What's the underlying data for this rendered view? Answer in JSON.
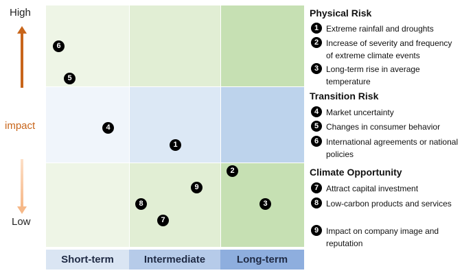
{
  "y_axis": {
    "high": "High",
    "middle": "impact",
    "low": "Low"
  },
  "x_axis": [
    "Short-term",
    "Intermediate",
    "Long-term"
  ],
  "colors": {
    "arrow_up": "#c8651a",
    "arrow_down": "#f6b888",
    "impact_label": "#c8651a",
    "green_light": "#eef5e6",
    "green_mid": "#e1eed4",
    "green_dark": "#c6e0b3",
    "blue_light": "#f0f5fb",
    "blue_mid": "#dce8f5",
    "blue_dark": "#bdd3ec"
  },
  "markers": [
    "1",
    "2",
    "3",
    "4",
    "5",
    "6",
    "7",
    "8",
    "9"
  ],
  "legend": {
    "physical": {
      "title": "Physical Risk",
      "items": [
        {
          "num": "1",
          "text": "Extreme rainfall and droughts"
        },
        {
          "num": "2",
          "text": "Increase of severity and frequency of extreme climate events"
        },
        {
          "num": "3",
          "text": "Long-term rise in average temperature"
        }
      ]
    },
    "transition": {
      "title": "Transition Risk",
      "items": [
        {
          "num": "4",
          "text": "Market uncertainty"
        },
        {
          "num": "5",
          "text": "Changes in consumer behavior"
        },
        {
          "num": "6",
          "text": "International agreements or national policies"
        }
      ]
    },
    "opportunity": {
      "title": "Climate Opportunity",
      "items": [
        {
          "num": "7",
          "text": "Attract capital investment"
        },
        {
          "num": "8",
          "text": "Low-carbon products and services"
        },
        {
          "num": "9",
          "text": "Impact on company image and reputation"
        }
      ]
    }
  }
}
